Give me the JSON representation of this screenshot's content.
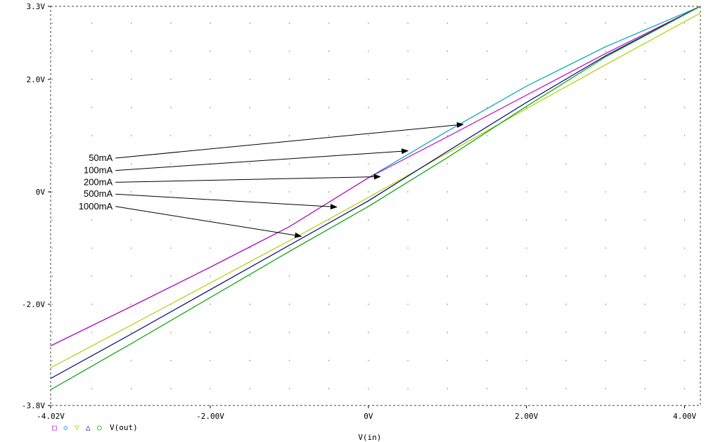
{
  "chart_data": {
    "type": "line",
    "xlabel": "V(in)",
    "xlim": [
      -4.02,
      4.2
    ],
    "ylim": [
      -3.8,
      3.3
    ],
    "x_ticks": [
      {
        "value": -4.02,
        "label": "-4.02V"
      },
      {
        "value": -2.0,
        "label": "-2.00V"
      },
      {
        "value": 0,
        "label": "0V"
      },
      {
        "value": 2.0,
        "label": "2.00V"
      },
      {
        "value": 4.0,
        "label": "4.00V"
      }
    ],
    "y_ticks": [
      {
        "value": 3.3,
        "label": "3.3V"
      },
      {
        "value": 2.0,
        "label": "2.0V"
      },
      {
        "value": 0,
        "label": "0V"
      },
      {
        "value": -2.0,
        "label": "-2.0V"
      },
      {
        "value": -3.8,
        "label": "-3.8V"
      }
    ],
    "grid": "dotted",
    "legend": {
      "placement": "bottom-left",
      "markers": [
        {
          "symbol": "□",
          "color": "#c000c0"
        },
        {
          "symbol": "◇",
          "color": "#00a0c0"
        },
        {
          "symbol": "▽",
          "color": "#b0d000"
        },
        {
          "symbol": "△",
          "color": "#000080"
        },
        {
          "symbol": "○",
          "color": "#00a000"
        }
      ],
      "text": "V(out)"
    },
    "series": [
      {
        "color": "#00a0c0",
        "x": [
          -4.02,
          -3,
          -2,
          -1,
          0,
          1,
          2,
          3,
          4.2
        ],
        "y": [
          -2.74,
          -2.04,
          -1.34,
          -0.62,
          0.25,
          1.08,
          1.88,
          2.58,
          3.3
        ]
      },
      {
        "color": "#c000c0",
        "x": [
          -4.02,
          -3,
          -2,
          -1,
          0,
          1,
          2,
          3,
          4.2
        ],
        "y": [
          -2.74,
          -2.04,
          -1.34,
          -0.62,
          0.25,
          0.98,
          1.72,
          2.46,
          3.3
        ]
      },
      {
        "color": "#b0d000",
        "x": [
          -4.02,
          -3,
          -2,
          -1,
          0,
          1,
          2,
          3,
          4.2
        ],
        "y": [
          -3.13,
          -2.37,
          -1.62,
          -0.87,
          -0.1,
          0.69,
          1.48,
          2.26,
          3.18
        ]
      },
      {
        "color": "#000080",
        "x": [
          -4.02,
          -3,
          -2,
          -1,
          0,
          1,
          2,
          3,
          4.2
        ],
        "y": [
          -3.32,
          -2.53,
          -1.74,
          -0.95,
          -0.16,
          0.72,
          1.59,
          2.42,
          3.3
        ]
      },
      {
        "color": "#00a000",
        "x": [
          -4.02,
          -3,
          -2,
          -1,
          0,
          1,
          2,
          3,
          4.2
        ],
        "y": [
          -3.52,
          -2.7,
          -1.88,
          -1.06,
          -0.26,
          0.61,
          1.52,
          2.4,
          3.3
        ]
      }
    ],
    "annotations": [
      {
        "text": "50mA",
        "tx": -3.2,
        "ty": 0.6,
        "ax": 1.2,
        "ay": 1.2
      },
      {
        "text": "100mA",
        "tx": -3.2,
        "ty": 0.38,
        "ax": 0.5,
        "ay": 0.73
      },
      {
        "text": "200mA",
        "tx": -3.2,
        "ty": 0.17,
        "ax": 0.15,
        "ay": 0.27
      },
      {
        "text": "500mA",
        "tx": -3.2,
        "ty": -0.04,
        "ax": -0.4,
        "ay": -0.27
      },
      {
        "text": "1000mA",
        "tx": -3.2,
        "ty": -0.26,
        "ax": -0.85,
        "ay": -0.79
      }
    ]
  }
}
